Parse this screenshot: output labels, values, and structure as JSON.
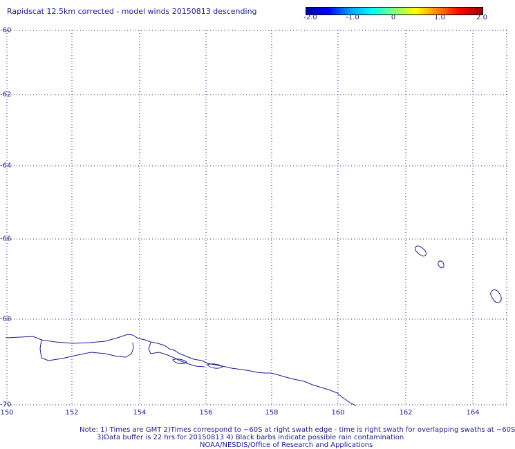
{
  "title": "Rapidscat 12.5km corrected - model winds 20150813 descending",
  "colorbar": {
    "min": -2.0,
    "max": 2.0,
    "ticks": [
      "-2.0",
      "-1.0",
      "0",
      "1.0",
      "2.0"
    ],
    "colors": [
      "#00009c",
      "#0000ff",
      "#00a0ff",
      "#00ffff",
      "#80ff80",
      "#ffff00",
      "#ff8000",
      "#ff0000",
      "#9c0000"
    ]
  },
  "axes": {
    "lat_ticks": [
      "-60",
      "-62",
      "-64",
      "-66",
      "-68",
      "-70"
    ],
    "lon_ticks": [
      "150",
      "152",
      "154",
      "156",
      "158",
      "160",
      "162",
      "164"
    ],
    "grid": "dotted"
  },
  "colors": {
    "coastline": "#1a1a8c",
    "grid": "#1a1a8c"
  },
  "notes": {
    "line1": "Note: 1) Times are GMT 2)Times correspond to ~60S at right swath edge - time is right swath for overlapping swaths at ~60S",
    "line2": "3)Data buffer is 22 hrs for 20150813 4) Black barbs indicate possible rain contamination",
    "line3": "NOAA/NESDIS/Office of Research and Applications"
  }
}
